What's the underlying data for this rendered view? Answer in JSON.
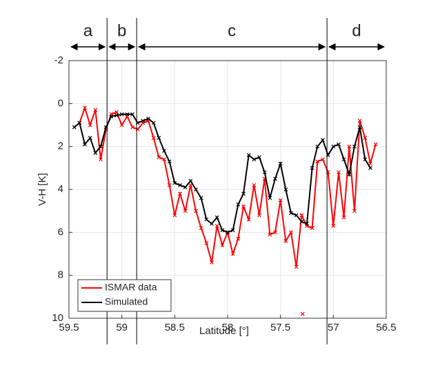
{
  "chart_data": {
    "type": "line",
    "xlabel": "Latitude [°]",
    "ylabel": "V-H [K]",
    "x": [
      59.45,
      59.4,
      59.35,
      59.3,
      59.25,
      59.2,
      59.15,
      59.1,
      59.05,
      59.0,
      58.95,
      58.9,
      58.85,
      58.8,
      58.75,
      58.7,
      58.65,
      58.6,
      58.55,
      58.5,
      58.45,
      58.4,
      58.35,
      58.3,
      58.25,
      58.2,
      58.15,
      58.1,
      58.05,
      58.0,
      57.95,
      57.9,
      57.85,
      57.8,
      57.75,
      57.7,
      57.65,
      57.6,
      57.55,
      57.5,
      57.45,
      57.4,
      57.35,
      57.3,
      57.25,
      57.2,
      57.15,
      57.1,
      57.05,
      57.0,
      56.95,
      56.9,
      56.85,
      56.8,
      56.75,
      56.7,
      56.65,
      56.6
    ],
    "series": [
      {
        "name": "ISMAR data",
        "color": "#ff0000",
        "values": [
          1.1,
          0.9,
          0.2,
          1.0,
          0.3,
          2.6,
          1.2,
          0.5,
          0.4,
          1.0,
          0.6,
          1.1,
          1.2,
          0.9,
          0.8,
          1.6,
          2.5,
          2.6,
          3.8,
          5.2,
          4.2,
          5.0,
          3.8,
          5.0,
          5.8,
          6.5,
          7.4,
          5.7,
          6.6,
          6.0,
          7.0,
          6.3,
          4.8,
          5.4,
          3.8,
          5.2,
          3.5,
          6.1,
          6.0,
          4.5,
          6.4,
          6.0,
          7.6,
          5.2,
          5.7,
          5.8,
          2.7,
          2.6,
          3.2,
          5.7,
          3.2,
          5.3,
          2.0,
          5.0,
          0.8,
          1.6,
          2.8,
          1.9
        ]
      },
      {
        "name": "Simulated",
        "color": "#000000",
        "values": [
          1.1,
          0.9,
          1.9,
          1.6,
          2.3,
          2.0,
          1.1,
          0.6,
          0.55,
          0.5,
          0.5,
          0.5,
          0.9,
          0.8,
          0.7,
          0.9,
          1.6,
          2.2,
          2.7,
          3.7,
          3.8,
          3.9,
          3.6,
          4.0,
          4.4,
          5.4,
          5.6,
          5.3,
          5.9,
          6.0,
          5.9,
          4.7,
          4.2,
          2.4,
          2.6,
          2.5,
          3.2,
          4.4,
          3.5,
          2.8,
          4.0,
          5.1,
          5.2,
          5.5,
          5.6,
          3.0,
          2.0,
          1.7,
          2.4,
          2.0,
          1.9,
          2.6,
          3.3,
          2.0,
          1.1,
          2.6,
          3.0,
          null
        ]
      }
    ],
    "isolated_point": {
      "series": 0,
      "x": 57.29,
      "y": 9.8
    },
    "xlim": [
      59.5,
      56.5
    ],
    "xticks": [
      59.5,
      59,
      58.5,
      58,
      57.5,
      57,
      56.5
    ],
    "ylim": [
      -2,
      10
    ],
    "yticks": [
      -2,
      0,
      2,
      4,
      6,
      8,
      10
    ],
    "yreverse": true,
    "grid": true,
    "legend": "lower left",
    "regions": [
      {
        "label": "a",
        "from": 59.5,
        "to": 59.14
      },
      {
        "label": "b",
        "from": 59.14,
        "to": 58.86
      },
      {
        "label": "c",
        "from": 58.86,
        "to": 57.06
      },
      {
        "label": "d",
        "from": 57.06,
        "to": 56.5
      }
    ],
    "boundaries": [
      59.14,
      58.86,
      57.06
    ]
  }
}
